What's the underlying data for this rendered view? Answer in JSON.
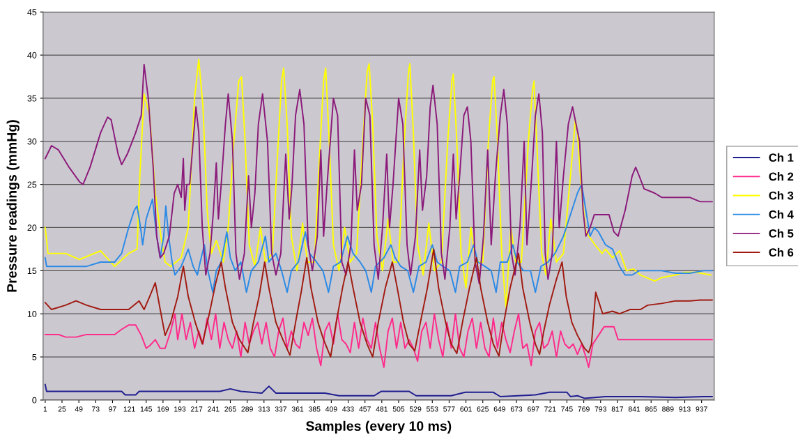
{
  "chart_data": {
    "type": "line",
    "xlabel": "Samples (every 10 ms)",
    "ylabel": "Pressure readings (mmHg)",
    "xlim": [
      -2,
      955
    ],
    "ylim": [
      0,
      45
    ],
    "yticks": [
      0,
      5,
      10,
      15,
      20,
      25,
      30,
      35,
      40,
      45
    ],
    "xticks": [
      1,
      25,
      49,
      73,
      97,
      121,
      145,
      169,
      193,
      217,
      241,
      265,
      289,
      313,
      337,
      361,
      385,
      409,
      433,
      457,
      481,
      505,
      529,
      553,
      577,
      601,
      625,
      649,
      673,
      697,
      721,
      745,
      769,
      793,
      817,
      841,
      865,
      889,
      913,
      937
    ],
    "grid": "y",
    "legend": "right",
    "marker": "none",
    "line_style": "solid",
    "series": [
      {
        "name": "Ch 1",
        "color": "#1f1f8f",
        "x": [
          1,
          3,
          110,
          115,
          130,
          135,
          250,
          265,
          280,
          310,
          320,
          330,
          400,
          420,
          470,
          480,
          520,
          530,
          580,
          600,
          640,
          650,
          700,
          720,
          745,
          750,
          760,
          770,
          800,
          850,
          900,
          940,
          952
        ],
        "values": [
          1.8,
          1.0,
          1.0,
          0.6,
          0.6,
          1.0,
          1.0,
          1.3,
          1.0,
          0.8,
          1.6,
          0.8,
          0.8,
          0.5,
          0.5,
          1.0,
          1.0,
          0.5,
          0.5,
          0.9,
          0.9,
          0.4,
          0.6,
          0.9,
          0.9,
          0.4,
          0.5,
          0.2,
          0.4,
          0.4,
          0.3,
          0.4,
          0.4
        ]
      },
      {
        "name": "Ch 2",
        "color": "#ff2a8a",
        "x": [
          1,
          20,
          30,
          45,
          60,
          100,
          110,
          120,
          130,
          138,
          145,
          150,
          158,
          165,
          172,
          180,
          186,
          190,
          196,
          202,
          208,
          214,
          220,
          226,
          232,
          238,
          244,
          250,
          256,
          262,
          268,
          274,
          280,
          286,
          292,
          298,
          304,
          310,
          316,
          322,
          328,
          334,
          340,
          346,
          352,
          358,
          364,
          370,
          376,
          382,
          388,
          394,
          400,
          406,
          412,
          418,
          424,
          430,
          436,
          442,
          448,
          454,
          460,
          466,
          472,
          478,
          484,
          490,
          496,
          502,
          508,
          514,
          520,
          526,
          532,
          538,
          544,
          550,
          556,
          562,
          568,
          574,
          580,
          586,
          592,
          598,
          604,
          610,
          616,
          622,
          628,
          634,
          640,
          646,
          652,
          658,
          664,
          670,
          676,
          682,
          688,
          694,
          700,
          706,
          712,
          718,
          724,
          730,
          736,
          742,
          748,
          754,
          760,
          766,
          772,
          776,
          782,
          790,
          798,
          812,
          818,
          850,
          870,
          900,
          930,
          952
        ],
        "values": [
          7.6,
          7.6,
          7.3,
          7.3,
          7.6,
          7.6,
          8.2,
          8.7,
          8.7,
          7.5,
          6,
          6.3,
          7,
          6,
          6,
          8,
          10,
          7,
          10,
          7,
          9,
          6,
          8,
          6.5,
          9.5,
          7,
          10,
          6,
          9,
          7,
          6,
          8,
          5,
          9,
          6.5,
          8,
          9,
          6.5,
          9,
          6,
          5,
          8,
          9.5,
          6,
          8,
          6.5,
          6,
          9,
          7.5,
          9.5,
          6,
          4,
          8,
          9,
          6.5,
          10,
          7,
          6.5,
          5.5,
          9,
          6,
          9.5,
          7,
          6,
          9,
          6,
          3.8,
          8,
          9.5,
          6,
          9,
          6,
          7,
          6,
          4.5,
          8,
          9,
          6,
          10,
          7,
          5,
          9,
          6,
          10,
          6,
          5,
          8,
          9.5,
          6,
          9,
          6,
          5,
          9.5,
          6,
          9,
          7,
          5.5,
          8,
          10,
          6,
          6.5,
          4,
          8,
          9,
          6,
          6.5,
          8,
          5,
          8,
          6.5,
          6,
          6.5,
          5.3,
          6.5,
          5,
          3.8,
          6.5,
          7.5,
          8.5,
          8.5,
          7,
          7,
          7,
          7,
          7,
          7
        ]
      },
      {
        "name": "Ch 3",
        "color": "#ffff00",
        "x": [
          1,
          5,
          30,
          50,
          80,
          100,
          120,
          132,
          136,
          142,
          150,
          158,
          166,
          172,
          180,
          195,
          205,
          214,
          220,
          226,
          232,
          238,
          245,
          255,
          262,
          270,
          277,
          281,
          286,
          292,
          300,
          308,
          315,
          325,
          332,
          338,
          341,
          346,
          352,
          360,
          368,
          375,
          385,
          392,
          398,
          401,
          406,
          412,
          420,
          428,
          436,
          445,
          454,
          460,
          463,
          468,
          474,
          482,
          490,
          497,
          505,
          513,
          519,
          521,
          526,
          532,
          540,
          548,
          556,
          566,
          575,
          581,
          583,
          588,
          594,
          601,
          608,
          615,
          625,
          633,
          639,
          641,
          646,
          652,
          658,
          665,
          672,
          680,
          690,
          696,
          698,
          703,
          709,
          715,
          722,
          730,
          740,
          750,
          757,
          760,
          765,
          772,
          785,
          795,
          800,
          810,
          820,
          830,
          840,
          850,
          870,
          880,
          900,
          912,
          930,
          950
        ],
        "values": [
          20,
          17,
          17,
          16.3,
          17.3,
          15.5,
          17,
          17.5,
          26,
          35.5,
          33,
          24,
          19,
          16,
          15.5,
          16.5,
          20,
          35,
          39.5,
          34,
          22,
          17,
          18.5,
          16,
          20,
          30,
          37,
          37.5,
          30,
          18,
          15.5,
          20,
          16,
          17,
          28,
          37,
          38.5,
          32,
          19,
          15,
          20.5,
          16,
          16,
          28,
          37,
          38.5,
          30,
          18,
          15,
          20,
          16,
          17,
          30,
          38,
          39,
          32,
          19,
          15,
          21,
          16,
          16,
          30,
          38,
          39,
          31,
          18,
          14.5,
          20.5,
          15,
          16,
          30,
          37,
          37.8,
          30,
          17,
          13,
          20,
          16,
          16,
          30,
          37,
          37.5,
          30,
          17,
          10.8,
          20,
          16,
          16,
          30,
          36,
          37,
          28,
          17,
          14.5,
          21,
          16,
          17,
          26,
          32.5,
          31,
          25,
          19.5,
          18,
          17,
          17.5,
          16.5,
          17.3,
          15,
          15.2,
          14.5,
          13.8,
          14.2,
          14.5,
          14.8,
          14.8,
          14.5
        ]
      },
      {
        "name": "Ch 4",
        "color": "#2a8ae6",
        "x": [
          1,
          3,
          60,
          80,
          100,
          110,
          120,
          128,
          132,
          137,
          140,
          145,
          154,
          160,
          165,
          170,
          173,
          177,
          182,
          186,
          195,
          205,
          212,
          218,
          222,
          228,
          233,
          240,
          245,
          252,
          260,
          265,
          272,
          280,
          288,
          295,
          305,
          315,
          320,
          330,
          338,
          346,
          352,
          362,
          372,
          378,
          388,
          397,
          405,
          412,
          422,
          432,
          440,
          450,
          458,
          466,
          472,
          484,
          494,
          500,
          508,
          518,
          526,
          534,
          544,
          553,
          560,
          568,
          578,
          586,
          592,
          603,
          612,
          618,
          628,
          637,
          644,
          650,
          660,
          668,
          674,
          683,
          693,
          700,
          708,
          718,
          728,
          740,
          752,
          760,
          766,
          772,
          778,
          784,
          790,
          800,
          810,
          820,
          828,
          838,
          848,
          860,
          880,
          900,
          920,
          940,
          952
        ],
        "values": [
          16.5,
          15.5,
          15.5,
          16,
          16,
          17,
          20,
          22,
          22.5,
          20,
          18,
          21,
          23.3,
          19,
          16.5,
          19,
          22.5,
          19,
          16,
          14.5,
          15.5,
          17.5,
          15.5,
          14.5,
          16,
          18,
          15,
          12.5,
          15,
          16,
          19.5,
          16.5,
          15,
          16,
          12.5,
          15,
          16,
          19,
          16,
          17,
          15,
          12.5,
          15,
          16,
          19.5,
          17,
          16,
          15,
          12.5,
          15.5,
          16,
          19,
          17,
          16,
          15,
          12.5,
          15.5,
          16.5,
          18,
          16.5,
          15.5,
          15,
          12.5,
          15.5,
          16,
          18,
          16,
          15.5,
          15,
          12.5,
          15.5,
          16,
          18,
          16,
          15.5,
          15,
          12.5,
          16,
          16,
          18,
          16,
          15,
          15,
          12.5,
          15.5,
          16,
          17,
          19,
          22,
          24,
          25,
          22,
          19,
          20,
          19.5,
          18,
          17.5,
          15.5,
          14.5,
          14.5,
          15,
          15,
          15,
          14.7,
          14.7,
          15,
          15
        ]
      },
      {
        "name": "Ch 5",
        "color": "#8b1a7a",
        "x": [
          1,
          10,
          20,
          35,
          50,
          55,
          65,
          80,
          90,
          95,
          105,
          110,
          118,
          130,
          138,
          142,
          148,
          155,
          160,
          165,
          170,
          178,
          185,
          190,
          195,
          198,
          200,
          203,
          207,
          212,
          216,
          220,
          225,
          230,
          236,
          241,
          245,
          248,
          252,
          258,
          262,
          268,
          273,
          278,
          285,
          291,
          295,
          300,
          305,
          311,
          318,
          324,
          330,
          337,
          344,
          349,
          353,
          358,
          364,
          370,
          376,
          382,
          389,
          394,
          398,
          403,
          412,
          418,
          424,
          430,
          437,
          442,
          446,
          452,
          458,
          464,
          470,
          476,
          482,
          488,
          492,
          497,
          505,
          511,
          517,
          522,
          529,
          535,
          539,
          545,
          550,
          554,
          560,
          566,
          571,
          578,
          583,
          587,
          592,
          598,
          603,
          608,
          614,
          620,
          626,
          632,
          637,
          643,
          650,
          655,
          660,
          666,
          671,
          678,
          684,
          688,
          694,
          700,
          705,
          710,
          714,
          718,
          724,
          730,
          734,
          740,
          747,
          753,
          758,
          763,
          768,
          772,
          778,
          784,
          795,
          805,
          812,
          818,
          828,
          838,
          843,
          848,
          855,
          870,
          880,
          900,
          920,
          935,
          952
        ],
        "values": [
          28,
          29.5,
          29,
          27,
          25.3,
          25,
          27,
          31,
          32.8,
          32.5,
          28.5,
          27.3,
          28.5,
          31,
          33,
          38.9,
          35,
          27,
          19,
          16.5,
          17,
          19,
          24,
          25,
          23.5,
          28,
          22,
          25,
          25,
          30,
          34,
          31,
          20,
          14.5,
          17,
          22,
          27.5,
          21,
          25,
          32,
          35.5,
          30,
          17,
          14,
          17,
          26,
          20,
          24,
          32,
          35.5,
          30,
          17,
          14.5,
          17,
          28.5,
          21,
          25,
          33,
          36,
          32,
          18,
          15,
          19,
          29,
          19,
          25,
          35,
          33,
          16,
          14.5,
          18,
          29,
          22,
          25,
          35,
          33,
          18,
          14,
          20,
          28.5,
          20,
          25,
          35,
          32,
          18,
          14.5,
          19,
          29,
          22,
          26,
          34,
          36.5,
          32,
          17,
          14,
          20,
          28.5,
          21,
          26,
          33,
          34,
          30,
          16,
          13.5,
          19,
          29,
          18,
          26,
          33,
          36,
          32,
          17,
          14.5,
          20,
          30,
          18,
          25,
          33,
          35.5,
          31,
          17,
          14,
          17,
          30,
          20,
          26,
          32,
          34,
          32,
          30,
          22,
          19,
          20,
          21.5,
          21.5,
          21.5,
          19.5,
          19,
          22,
          26,
          27,
          26,
          24.5,
          24,
          23.5,
          23.5,
          23.5,
          23,
          23
        ]
      },
      {
        "name": "Ch 6",
        "color": "#a01a10",
        "x": [
          1,
          10,
          30,
          45,
          60,
          80,
          100,
          120,
          135,
          142,
          150,
          158,
          165,
          172,
          180,
          190,
          198,
          205,
          215,
          225,
          235,
          244,
          252,
          258,
          268,
          278,
          290,
          298,
          306,
          314,
          320,
          330,
          340,
          350,
          358,
          366,
          374,
          380,
          390,
          398,
          408,
          416,
          425,
          433,
          440,
          450,
          460,
          468,
          476,
          486,
          496,
          503,
          512,
          520,
          528,
          536,
          546,
          555,
          562,
          572,
          580,
          588,
          596,
          606,
          616,
          622,
          632,
          640,
          648,
          655,
          664,
          676,
          682,
          692,
          700,
          706,
          712,
          720,
          730,
          738,
          744,
          752,
          760,
          770,
          776,
          780,
          786,
          790,
          796,
          810,
          820,
          835,
          850,
          860,
          880,
          900,
          920,
          935,
          952
        ],
        "values": [
          11.3,
          10.5,
          11,
          11.5,
          11,
          10.5,
          10.5,
          10.5,
          11.5,
          10.5,
          12,
          13.6,
          10.5,
          7.5,
          9,
          12,
          15.5,
          12,
          9,
          6.5,
          10,
          13.5,
          16,
          13,
          9,
          7,
          5.5,
          9,
          12,
          16,
          13,
          9,
          7,
          5.2,
          9,
          12.5,
          16.5,
          13,
          9,
          7,
          5,
          9,
          13,
          16,
          13,
          9,
          6.5,
          5,
          9,
          13,
          16,
          13,
          9,
          6.5,
          5.7,
          9,
          13,
          17.5,
          13,
          9,
          6.5,
          5.4,
          9,
          13,
          16.5,
          13,
          9,
          6.5,
          5.1,
          9,
          13,
          17,
          13,
          9,
          6.5,
          5.3,
          8,
          11,
          14,
          16,
          12,
          9,
          7.5,
          6,
          5.5,
          6.5,
          12.5,
          11.5,
          10,
          10.3,
          10,
          10.5,
          10.5,
          11,
          11.2,
          11.5,
          11.5,
          11.6,
          11.6
        ]
      }
    ]
  }
}
